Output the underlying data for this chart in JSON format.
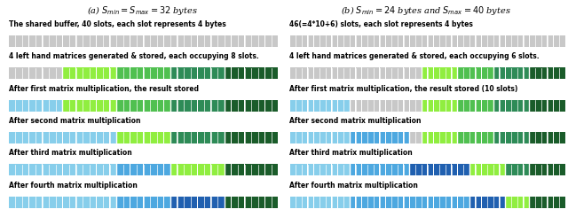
{
  "panel_a": {
    "title": "(a) $S_{min} = S_{max} = 32$ bytes",
    "total_slots": 40,
    "labels": [
      "The shared buffer, 40 slots, each slot represents 4 bytes",
      "4 left hand matrices generated & stored, each occupying 8 slots.",
      "After first matrix multiplication, the result stored",
      "After second matrix multiplication",
      "After third matrix multiplication",
      "After fourth matrix multiplication"
    ],
    "rows": [
      [
        {
          "color": "gray",
          "count": 40
        }
      ],
      [
        {
          "color": "gray",
          "count": 8
        },
        {
          "color": "lgreen",
          "count": 8
        },
        {
          "color": "mgreen",
          "count": 8
        },
        {
          "color": "teal",
          "count": 8
        },
        {
          "color": "dgreen",
          "count": 8
        }
      ],
      [
        {
          "color": "lblue",
          "count": 8
        },
        {
          "color": "lgreen",
          "count": 8
        },
        {
          "color": "mgreen",
          "count": 8
        },
        {
          "color": "teal",
          "count": 8
        },
        {
          "color": "dgreen",
          "count": 8
        }
      ],
      [
        {
          "color": "lblue",
          "count": 16
        },
        {
          "color": "lgreen",
          "count": 8
        },
        {
          "color": "teal",
          "count": 8
        },
        {
          "color": "dgreen",
          "count": 8
        }
      ],
      [
        {
          "color": "lblue",
          "count": 16
        },
        {
          "color": "mblue",
          "count": 8
        },
        {
          "color": "lgreen",
          "count": 8
        },
        {
          "color": "dgreen",
          "count": 8
        }
      ],
      [
        {
          "color": "lblue",
          "count": 16
        },
        {
          "color": "mblue",
          "count": 8
        },
        {
          "color": "dblue",
          "count": 8
        },
        {
          "color": "dgreen",
          "count": 8
        }
      ]
    ]
  },
  "panel_b": {
    "title": "(b) $S_{min} = 24$ bytes and $S_{max} = 40$ bytes",
    "total_slots": 46,
    "labels": [
      "46(=4*10+6) slots, each slot represents 4 bytes",
      "4 left hand matrices generated & stored, each occupying 6 slots.",
      "After first matrix multiplication, the result stored (10 slots)",
      "After second matrix multiplication",
      "After third matrix multiplication",
      "After fourth matrix multiplication"
    ],
    "rows": [
      [
        {
          "color": "gray",
          "count": 46
        }
      ],
      [
        {
          "color": "gray",
          "count": 22
        },
        {
          "color": "lgreen",
          "count": 6
        },
        {
          "color": "mgreen",
          "count": 6
        },
        {
          "color": "teal",
          "count": 6
        },
        {
          "color": "dgreen",
          "count": 6
        }
      ],
      [
        {
          "color": "lblue",
          "count": 10
        },
        {
          "color": "gray",
          "count": 12
        },
        {
          "color": "lgreen",
          "count": 6
        },
        {
          "color": "mgreen",
          "count": 6
        },
        {
          "color": "teal",
          "count": 6
        },
        {
          "color": "dgreen",
          "count": 6
        }
      ],
      [
        {
          "color": "lblue",
          "count": 10
        },
        {
          "color": "mblue",
          "count": 10
        },
        {
          "color": "gray",
          "count": 2
        },
        {
          "color": "lgreen",
          "count": 6
        },
        {
          "color": "mgreen",
          "count": 6
        },
        {
          "color": "teal",
          "count": 6
        },
        {
          "color": "dgreen",
          "count": 6
        }
      ],
      [
        {
          "color": "lblue",
          "count": 10
        },
        {
          "color": "mblue",
          "count": 10
        },
        {
          "color": "dblue",
          "count": 10
        },
        {
          "color": "lgreen",
          "count": 6
        },
        {
          "color": "teal",
          "count": 4
        },
        {
          "color": "dgreen",
          "count": 6
        }
      ],
      [
        {
          "color": "lblue",
          "count": 10
        },
        {
          "color": "mblue",
          "count": 20
        },
        {
          "color": "dblue",
          "count": 6
        },
        {
          "color": "lgreen",
          "count": 4
        },
        {
          "color": "dgreen",
          "count": 6
        }
      ]
    ]
  },
  "colors": {
    "gray": "#c8c8c8",
    "lgreen": "#90ee40",
    "mgreen": "#50c050",
    "teal": "#2e8b57",
    "dgreen": "#1a5c2a",
    "lblue": "#87ceeb",
    "mblue": "#4da8e0",
    "dblue": "#2060b0",
    "vdblue": "#1a3a7a"
  },
  "title_fontsize": 7,
  "label_fontsize": 5.5
}
